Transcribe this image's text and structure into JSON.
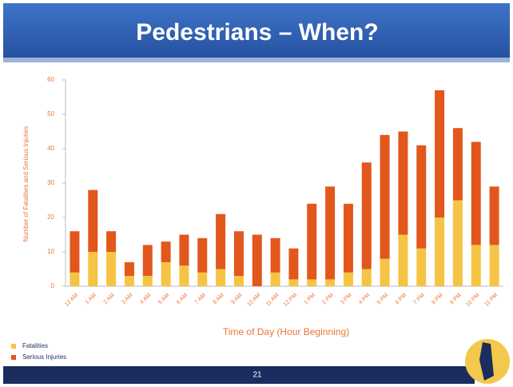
{
  "chart_data": {
    "type": "stacked_bar",
    "title": "Pedestrians – When?",
    "categories": [
      "12 AM",
      "1 AM",
      "2 AM",
      "3 AM",
      "4 AM",
      "5 AM",
      "6 AM",
      "7 AM",
      "8 AM",
      "9 AM",
      "10 AM",
      "11 AM",
      "12 PM",
      "1 PM",
      "2 PM",
      "3 PM",
      "4 PM",
      "5 PM",
      "6 PM",
      "7 PM",
      "8 PM",
      "9 PM",
      "10 PM",
      "11 PM"
    ],
    "series": [
      {
        "name": "Fatalities",
        "color": "#f5c445",
        "values": [
          4,
          10,
          10,
          3,
          3,
          7,
          6,
          4,
          5,
          3,
          0,
          4,
          2,
          2,
          2,
          4,
          5,
          8,
          15,
          11,
          20,
          25,
          12,
          12
        ]
      },
      {
        "name": "Serious Injuries",
        "color": "#e2571c",
        "values": [
          12,
          18,
          6,
          4,
          9,
          6,
          9,
          10,
          16,
          13,
          15,
          10,
          9,
          22,
          27,
          20,
          31,
          36,
          30,
          30,
          37,
          21,
          30,
          17
        ]
      }
    ],
    "ylim": [
      0,
      60
    ],
    "yticks": [
      0,
      10,
      20,
      30,
      40,
      50,
      60
    ],
    "y_label": "Number of Fatalities and Serious Injuries",
    "x_label": "Time of Day (Hour Beginning)",
    "legend": "bottom-left"
  },
  "footer": {
    "page": "21"
  }
}
